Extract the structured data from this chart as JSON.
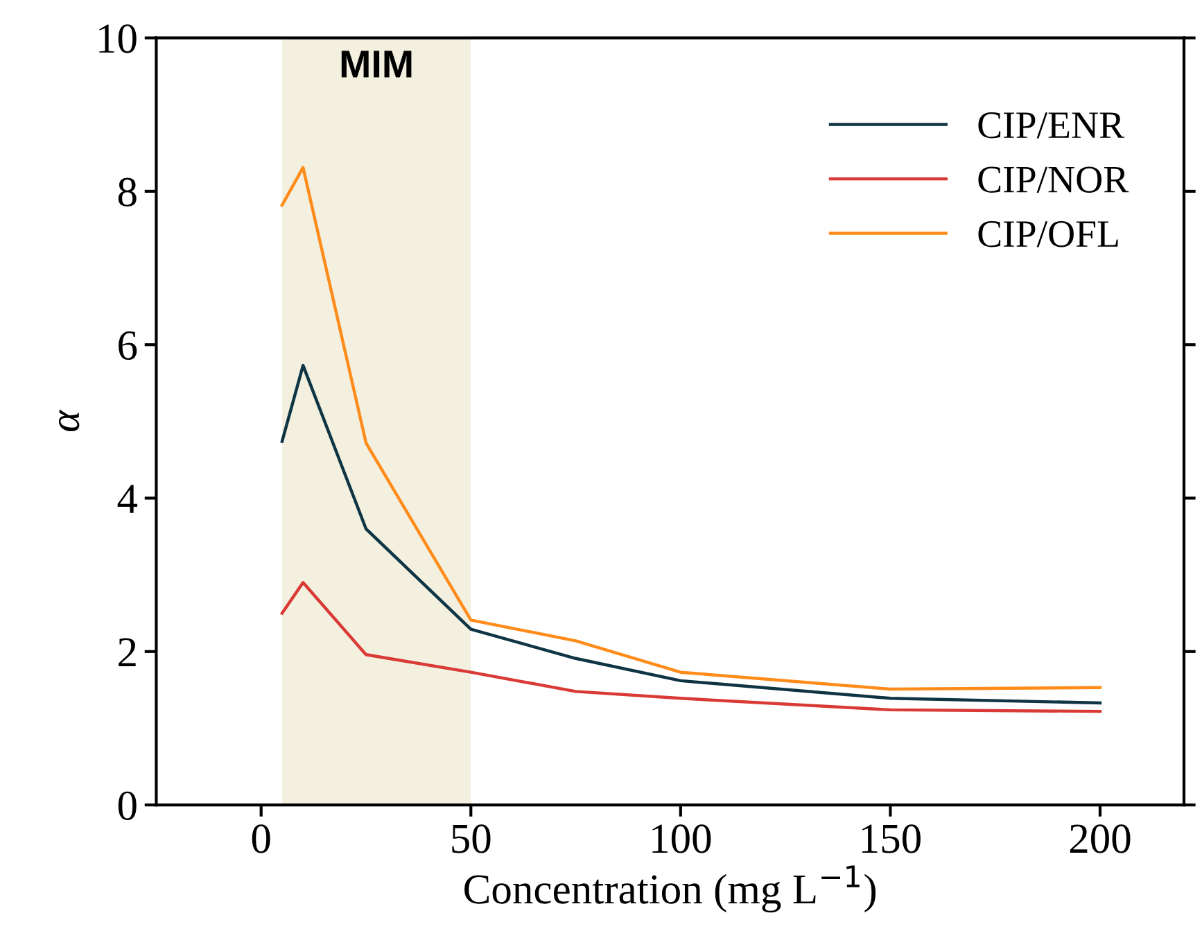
{
  "chart_data": {
    "type": "line",
    "xlabel": "Concentration (mg L$^{−1}$)",
    "ylabel": "α",
    "x": [
      5,
      10,
      25,
      50,
      75,
      100,
      150,
      200
    ],
    "series": [
      {
        "name": "CIP/ENR",
        "color": "#0f3545",
        "values": [
          4.74,
          5.73,
          3.6,
          2.29,
          1.91,
          1.62,
          1.39,
          1.33
        ]
      },
      {
        "name": "CIP/NOR",
        "color": "#d93a35",
        "values": [
          2.5,
          2.9,
          1.96,
          1.73,
          1.48,
          1.39,
          1.24,
          1.22
        ]
      },
      {
        "name": "CIP/OFL",
        "color": "#ff8c1a",
        "values": [
          7.82,
          8.31,
          4.72,
          2.41,
          2.14,
          1.73,
          1.51,
          1.53
        ]
      }
    ],
    "bands": [
      {
        "axis": "x",
        "from": 5,
        "to": 50,
        "label": "MIM",
        "color": "#f3f0e0"
      }
    ],
    "xlim": [
      -25,
      220
    ],
    "xticks": [
      0,
      50,
      100,
      150,
      200
    ],
    "ylim": [
      0,
      10
    ],
    "yticks": [
      0,
      2,
      4,
      6,
      8,
      10
    ],
    "grid": false,
    "legend": "top right",
    "marker": "none",
    "line_style": "solid"
  }
}
